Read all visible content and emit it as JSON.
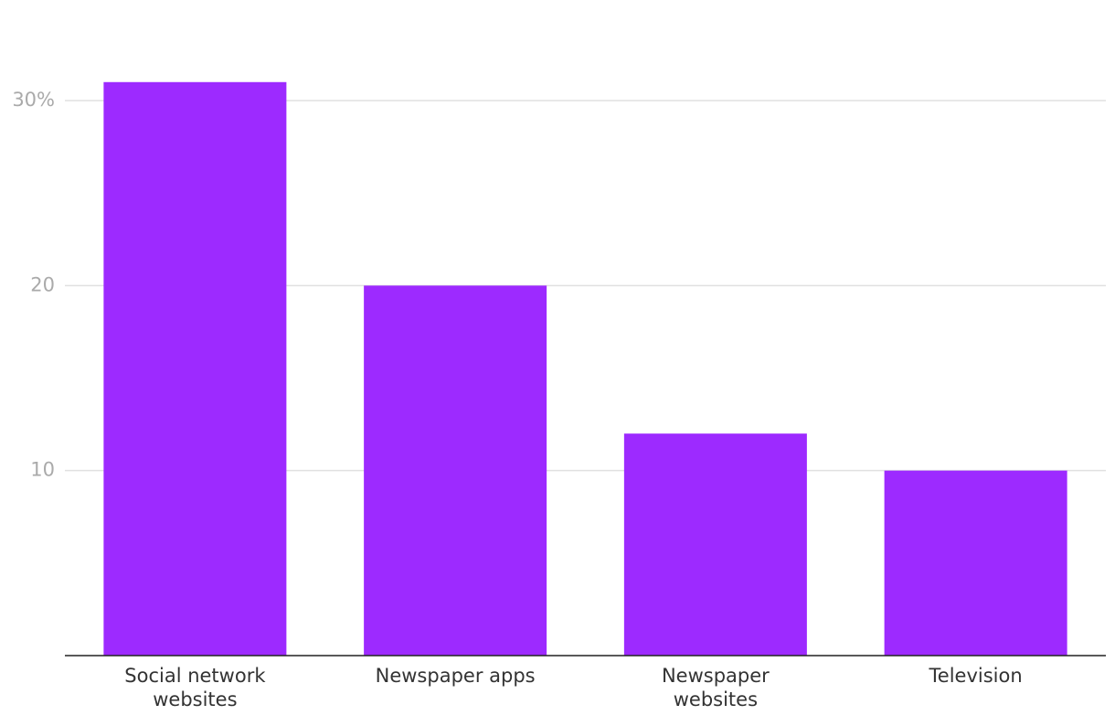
{
  "chart_data": {
    "type": "bar",
    "categories": [
      "Social network websites",
      "Newspaper apps",
      "Newspaper websites",
      "Television"
    ],
    "values": [
      31,
      20,
      12,
      10
    ],
    "color": "#9d2aff",
    "ylim": [
      0,
      33
    ],
    "yticks": [
      10,
      20,
      {
        "value": 30,
        "label": "30%"
      }
    ],
    "grid": true
  }
}
